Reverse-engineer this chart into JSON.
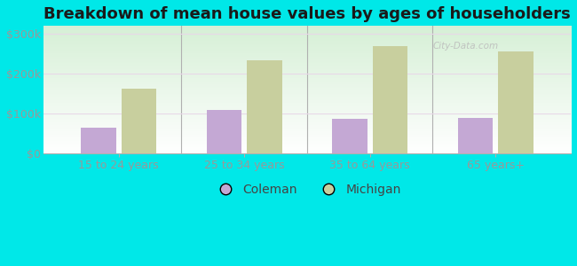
{
  "title": "Breakdown of mean house values by ages of householders",
  "categories": [
    "15 to 24 years",
    "25 to 34 years",
    "35 to 64 years",
    "65 years+"
  ],
  "coleman_values": [
    65000,
    110000,
    87000,
    90000
  ],
  "michigan_values": [
    163000,
    233000,
    270000,
    255000
  ],
  "coleman_color": "#c4a8d4",
  "michigan_color": "#c8cf9e",
  "background_color": "#00e8e8",
  "ylim": [
    0,
    320000
  ],
  "yticks": [
    0,
    100000,
    200000,
    300000
  ],
  "ytick_labels": [
    "$0",
    "$100k",
    "$200k",
    "$300k"
  ],
  "legend_coleman": "Coleman",
  "legend_michigan": "Michigan",
  "bar_width": 0.28,
  "title_fontsize": 13,
  "tick_fontsize": 9,
  "legend_fontsize": 10,
  "watermark_text": "City-Data.com",
  "grid_color": "#dddddd",
  "tick_color": "#999999",
  "divider_color": "#b0b0b0"
}
